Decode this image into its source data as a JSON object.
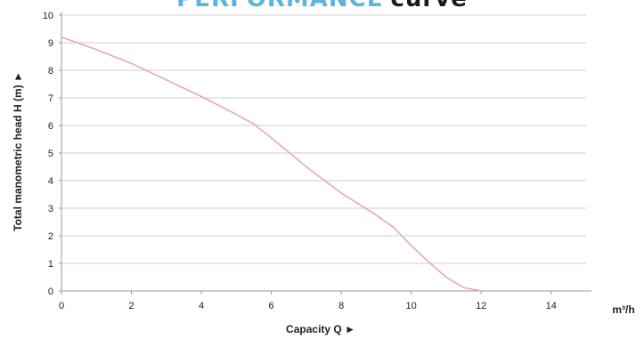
{
  "chart_data": {
    "type": "line",
    "title_part1": "PERFORMANCE",
    "title_part2": "curve",
    "xlabel": "Capacity Q ►",
    "ylabel": "Total manometric head H (m) ►",
    "x_unit": "m³/h",
    "xlim": [
      0,
      15
    ],
    "ylim": [
      0,
      10
    ],
    "xticks": [
      0,
      2,
      4,
      6,
      8,
      10,
      12,
      14
    ],
    "yticks": [
      0,
      1,
      2,
      3,
      4,
      5,
      6,
      7,
      8,
      9,
      10
    ],
    "grid": true,
    "series": [
      {
        "x": [
          0,
          1,
          2,
          3,
          4,
          5,
          5.5,
          6,
          7,
          8,
          9,
          9.5,
          10,
          10.5,
          11,
          11.5,
          12
        ],
        "y": [
          9.2,
          8.75,
          8.25,
          7.65,
          7.05,
          6.4,
          6.05,
          5.55,
          4.5,
          3.55,
          2.75,
          2.3,
          1.65,
          1.05,
          0.5,
          0.12,
          0
        ]
      }
    ]
  },
  "colors": {
    "title_accent": "#5ab4e0",
    "curve": "#e8a8b4",
    "grid": "#cfcfcf",
    "axis": "#9a9a9a",
    "text": "#222222"
  }
}
